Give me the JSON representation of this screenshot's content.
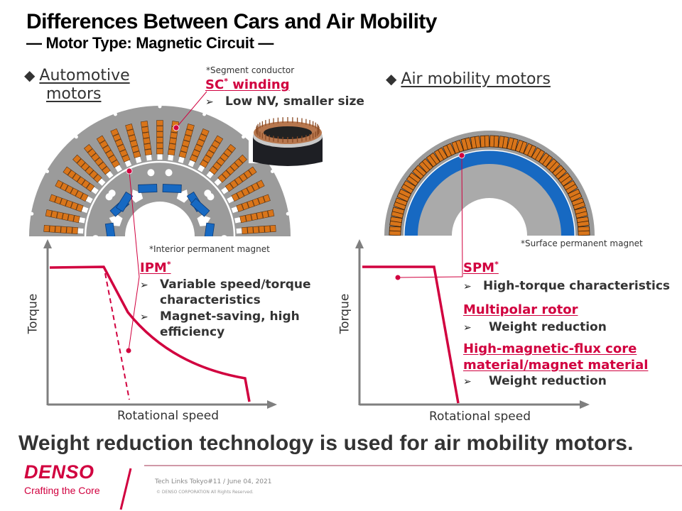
{
  "header": {
    "title": "Differences Between Cars and Air Mobility",
    "subtitle": "— Motor Type: Magnetic Circuit —"
  },
  "automotive": {
    "heading_line1": "Automotive",
    "heading_line2": "motors",
    "sc_note": "*Segment conductor",
    "sc_label": "SC",
    "sc_suffix": " winding",
    "sc_star": "*",
    "sc_bullet": "Low NV, smaller size",
    "ipm_note": "*Interior permanent magnet",
    "ipm_label": "IPM",
    "ipm_star": "*",
    "ipm_bullets": [
      [
        "Variable speed/torque",
        "characteristics"
      ],
      [
        "Magnet-saving, high",
        "efficiency"
      ]
    ],
    "y_axis": "Torque",
    "x_axis": "Rotational speed"
  },
  "air_mobility": {
    "heading": "Air mobility motors",
    "spm_note": "*Surface permanent magnet",
    "spm_label": "SPM",
    "spm_star": "*",
    "spm_bullet": "High-torque characteristics",
    "multipolar_label": "Multipolar rotor",
    "multipolar_bullet": "Weight reduction",
    "flux_label_line1": "High-magnetic-flux core",
    "flux_label_line2": "material/magnet material",
    "flux_bullet": "Weight reduction",
    "y_axis": "Torque",
    "x_axis": "Rotational speed"
  },
  "conclusion": "Weight reduction technology is used for air mobility motors.",
  "footer": {
    "logo": "DENSO",
    "tagline": "Crafting the Core",
    "event": "Tech Links Tokyo#11  / June 04, 2021",
    "copyright": "© DENSO CORPORATION All Rights Reserved."
  },
  "colors": {
    "accent_red": "#d1003f",
    "stator_gray": "#9b9b9b",
    "magnet_blue": "#1769c2",
    "coil_orange": "#d9751a",
    "axis_gray": "#7f7f7f"
  }
}
